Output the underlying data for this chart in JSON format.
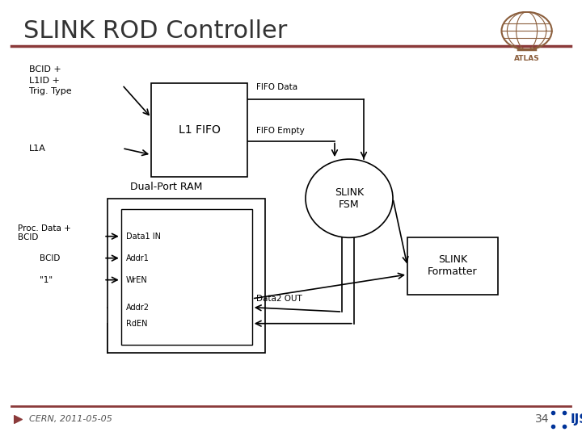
{
  "title": "SLINK ROD Controller",
  "title_color": "#333333",
  "title_fontsize": 22,
  "bg_color": "#ffffff",
  "header_line_color": "#8B3A3A",
  "footer_text": "CERN, 2011-05-05",
  "footer_number": "34",
  "footer_color": "#555555"
}
